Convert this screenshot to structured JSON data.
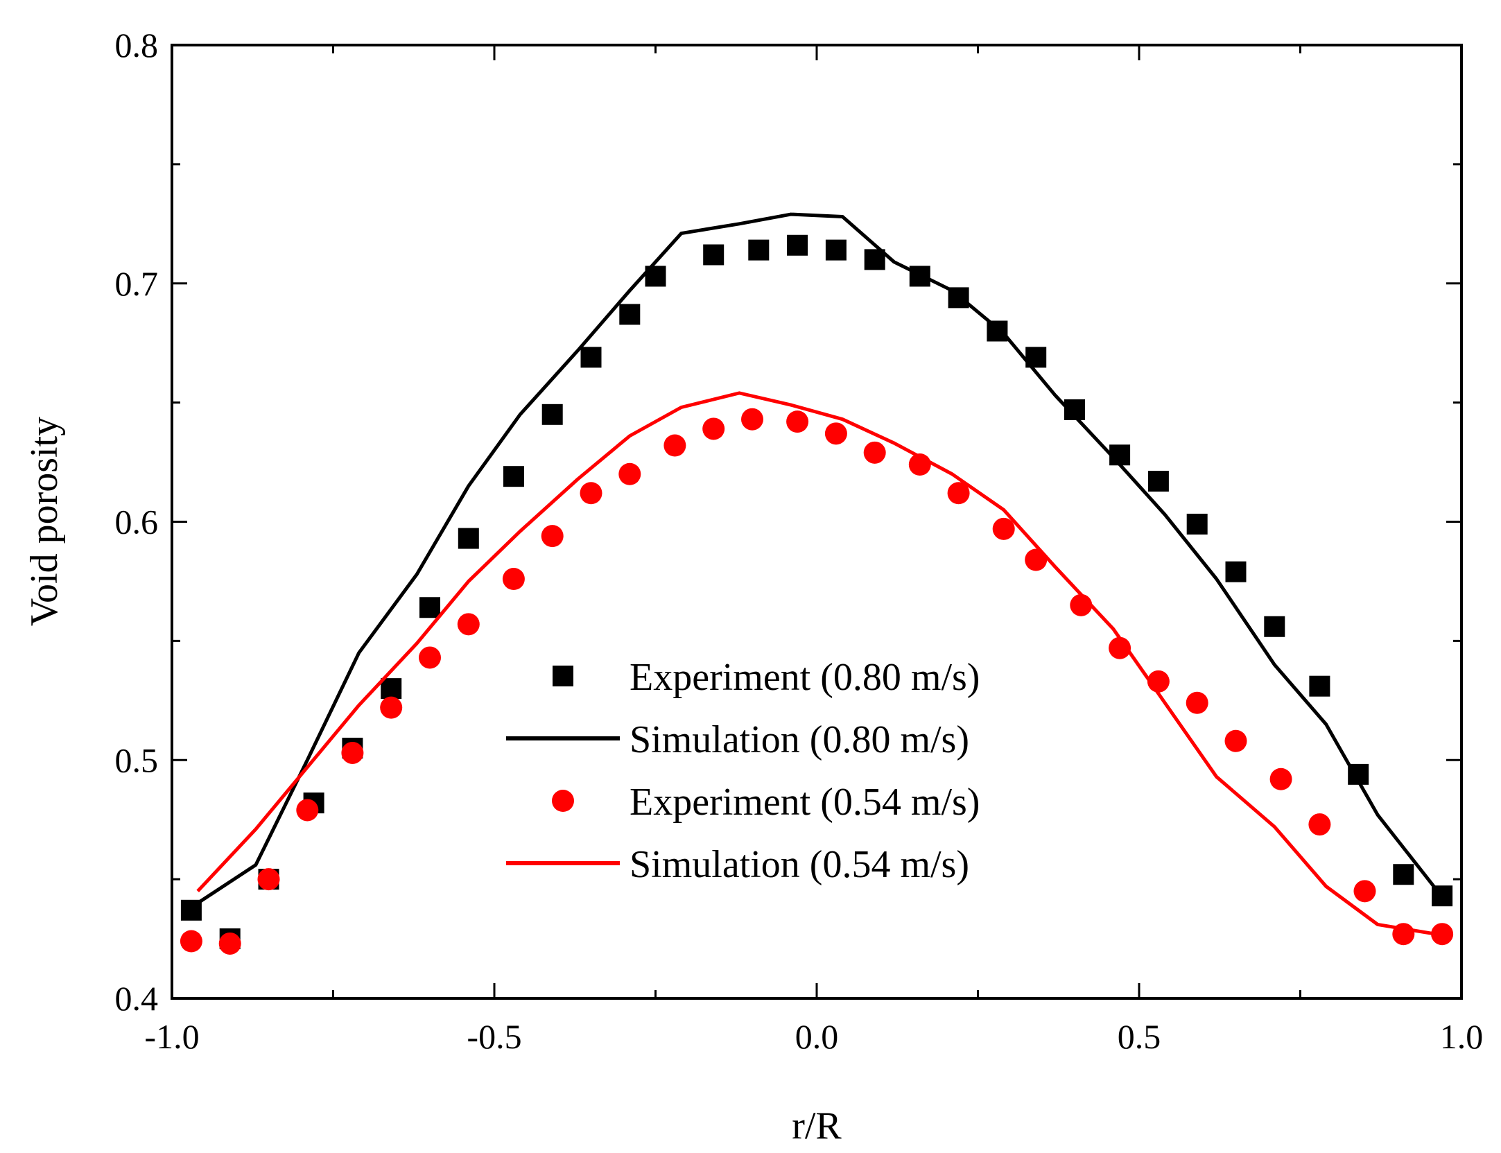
{
  "chart_data": {
    "type": "scatter",
    "title": "",
    "xlabel": "r/R",
    "ylabel": "Void porosity",
    "xlim": [
      -1.0,
      1.0
    ],
    "ylim": [
      0.4,
      0.8
    ],
    "x_ticks": [
      "-1.0",
      "-0.5",
      "0.0",
      "0.5",
      "1.0"
    ],
    "y_ticks": [
      "0.4",
      "0.5",
      "0.6",
      "0.7",
      "0.8"
    ],
    "legend_position": "center",
    "series": [
      {
        "name": "Experiment (0.80 m/s)",
        "kind": "markers",
        "marker": "square",
        "color": "#000000",
        "x": [
          -0.97,
          -0.91,
          -0.85,
          -0.78,
          -0.72,
          -0.66,
          -0.6,
          -0.54,
          -0.47,
          -0.41,
          -0.35,
          -0.29,
          -0.25,
          -0.16,
          -0.09,
          -0.03,
          0.03,
          0.09,
          0.16,
          0.22,
          0.28,
          0.34,
          0.4,
          0.47,
          0.53,
          0.59,
          0.65,
          0.71,
          0.78,
          0.84,
          0.91,
          0.97
        ],
        "y": [
          0.437,
          0.425,
          0.45,
          0.482,
          0.505,
          0.53,
          0.564,
          0.593,
          0.619,
          0.645,
          0.669,
          0.687,
          0.703,
          0.712,
          0.714,
          0.716,
          0.714,
          0.71,
          0.703,
          0.694,
          0.68,
          0.669,
          0.647,
          0.628,
          0.617,
          0.599,
          0.579,
          0.556,
          0.531,
          0.494,
          0.452,
          0.443
        ]
      },
      {
        "name": "Simulation (0.80 m/s)",
        "kind": "line",
        "color": "#000000",
        "x": [
          -0.96,
          -0.87,
          -0.79,
          -0.71,
          -0.62,
          -0.54,
          -0.46,
          -0.37,
          -0.29,
          -0.21,
          -0.12,
          -0.04,
          0.04,
          0.12,
          0.21,
          0.29,
          0.37,
          0.46,
          0.54,
          0.62,
          0.71,
          0.79,
          0.87,
          0.96
        ],
        "y": [
          0.44,
          0.456,
          0.5,
          0.545,
          0.578,
          0.615,
          0.645,
          0.672,
          0.697,
          0.721,
          0.725,
          0.729,
          0.728,
          0.709,
          0.697,
          0.679,
          0.653,
          0.627,
          0.603,
          0.576,
          0.54,
          0.515,
          0.477,
          0.446
        ]
      },
      {
        "name": "Experiment (0.54 m/s)",
        "kind": "markers",
        "marker": "circle",
        "color": "#ff0000",
        "x": [
          -0.97,
          -0.91,
          -0.85,
          -0.79,
          -0.72,
          -0.66,
          -0.6,
          -0.54,
          -0.47,
          -0.41,
          -0.35,
          -0.29,
          -0.22,
          -0.16,
          -0.1,
          -0.03,
          0.03,
          0.09,
          0.16,
          0.22,
          0.29,
          0.34,
          0.41,
          0.47,
          0.53,
          0.59,
          0.65,
          0.72,
          0.78,
          0.85,
          0.91,
          0.97
        ],
        "y": [
          0.424,
          0.423,
          0.45,
          0.479,
          0.503,
          0.522,
          0.543,
          0.557,
          0.576,
          0.594,
          0.612,
          0.62,
          0.632,
          0.639,
          0.643,
          0.642,
          0.637,
          0.629,
          0.624,
          0.612,
          0.597,
          0.584,
          0.565,
          0.547,
          0.533,
          0.524,
          0.508,
          0.492,
          0.473,
          0.445,
          0.427,
          0.427
        ]
      },
      {
        "name": "Simulation (0.54 m/s)",
        "kind": "line",
        "color": "#ff0000",
        "x": [
          -0.96,
          -0.87,
          -0.79,
          -0.71,
          -0.62,
          -0.54,
          -0.46,
          -0.37,
          -0.29,
          -0.21,
          -0.12,
          -0.04,
          0.04,
          0.12,
          0.21,
          0.29,
          0.37,
          0.46,
          0.54,
          0.62,
          0.71,
          0.79,
          0.87,
          0.96
        ],
        "y": [
          0.445,
          0.471,
          0.497,
          0.523,
          0.549,
          0.575,
          0.596,
          0.618,
          0.636,
          0.648,
          0.654,
          0.649,
          0.643,
          0.633,
          0.62,
          0.605,
          0.581,
          0.555,
          0.524,
          0.493,
          0.472,
          0.447,
          0.431,
          0.427
        ]
      }
    ]
  }
}
